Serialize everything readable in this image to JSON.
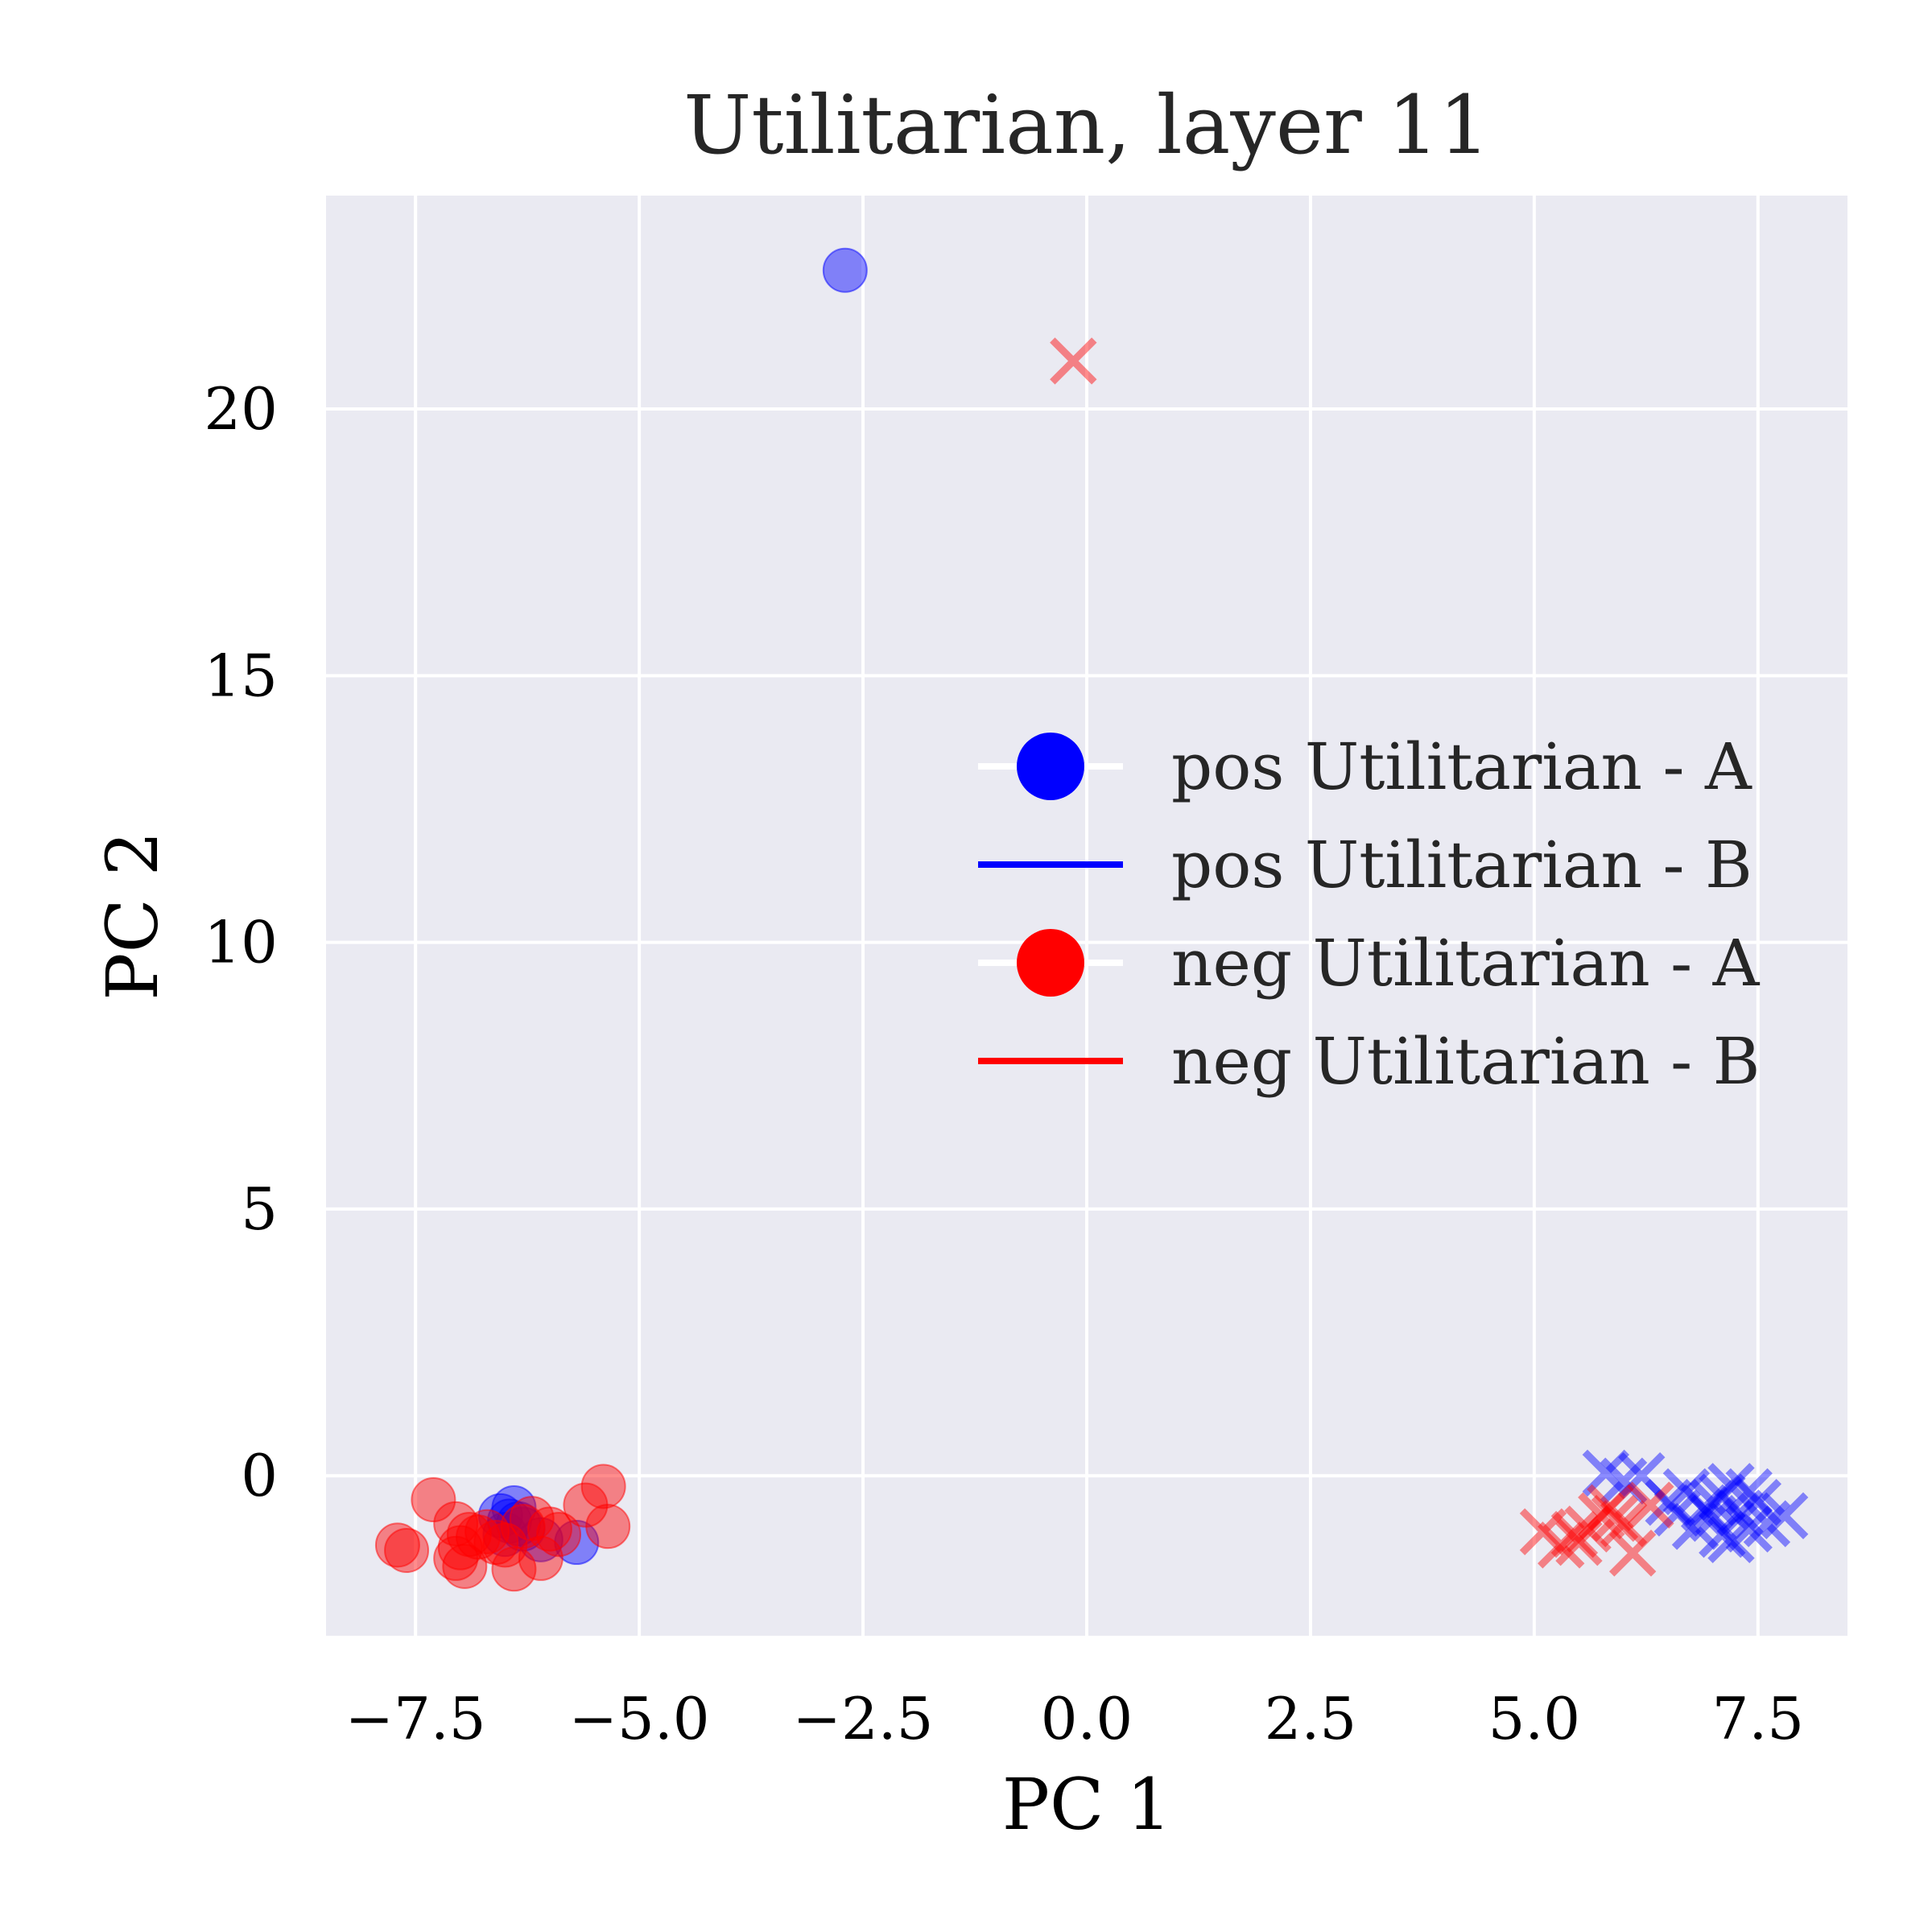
{
  "chart_data": {
    "type": "scatter",
    "title": "Utilitarian, layer 11",
    "xlabel": "PC 1",
    "ylabel": "PC 2",
    "xlim": [
      -8.5,
      8.5
    ],
    "ylim": [
      -3.0,
      24.0
    ],
    "xticks": [
      -7.5,
      -5.0,
      -2.5,
      0.0,
      2.5,
      5.0,
      7.5
    ],
    "xtick_labels": [
      "−7.5",
      "−5.0",
      "−2.5",
      "0.0",
      "2.5",
      "5.0",
      "7.5"
    ],
    "yticks": [
      0,
      5,
      10,
      15,
      20
    ],
    "ytick_labels": [
      "0",
      "5",
      "10",
      "15",
      "20"
    ],
    "grid": true,
    "legend_position": "center-right",
    "series": [
      {
        "name": "pos Utilitarian - A",
        "color": "#0000ff",
        "marker": "circle",
        "x": [
          -2.7,
          -6.55,
          -6.4,
          -6.35,
          -6.5,
          -5.7,
          -6.1,
          -6.3,
          -6.45
        ],
        "y": [
          22.6,
          -0.75,
          -0.6,
          -0.9,
          -1.1,
          -1.25,
          -1.2,
          -1.0,
          -0.85
        ]
      },
      {
        "name": "pos Utilitarian - B",
        "color": "#0000ff",
        "marker": "x",
        "x": [
          5.8,
          6.0,
          6.2,
          6.5,
          6.7,
          6.9,
          7.0,
          7.1,
          7.2,
          7.3,
          7.4,
          7.5,
          7.6,
          7.8,
          6.8,
          7.0,
          7.2,
          7.4,
          6.6,
          7.1
        ],
        "y": [
          0.05,
          -0.1,
          0.0,
          -0.5,
          -0.3,
          -0.6,
          -0.8,
          -0.4,
          -0.2,
          -0.7,
          -1.0,
          -0.5,
          -0.9,
          -0.75,
          -0.95,
          -0.5,
          -1.2,
          -0.3,
          -0.7,
          -1.1
        ]
      },
      {
        "name": "neg Utilitarian - A",
        "color": "#ff0000",
        "marker": "circle",
        "x": [
          -7.7,
          -7.6,
          -7.3,
          -7.05,
          -7.0,
          -6.95,
          -6.9,
          -6.8,
          -6.7,
          -6.6,
          -6.4,
          -6.3,
          -6.2,
          -6.1,
          -6.0,
          -5.9,
          -5.6,
          -5.4,
          -5.35,
          -6.5,
          -7.05
        ],
        "y": [
          -1.3,
          -1.4,
          -0.45,
          -0.9,
          -1.35,
          -1.7,
          -1.1,
          -1.15,
          -1.05,
          -1.25,
          -1.75,
          -0.95,
          -0.8,
          -1.55,
          -1.0,
          -1.1,
          -0.55,
          -0.2,
          -0.95,
          -1.3,
          -1.55
        ]
      },
      {
        "name": "neg Utilitarian - B",
        "color": "#ff0000",
        "marker": "x",
        "x": [
          -0.15,
          5.1,
          5.3,
          5.45,
          5.6,
          5.75,
          5.9,
          6.1,
          6.3,
          6.0,
          5.5,
          5.85
        ],
        "y": [
          20.9,
          -1.05,
          -1.3,
          -1.1,
          -1.0,
          -0.75,
          -0.8,
          -1.45,
          -0.55,
          -0.9,
          -1.25,
          -0.6
        ]
      }
    ]
  }
}
